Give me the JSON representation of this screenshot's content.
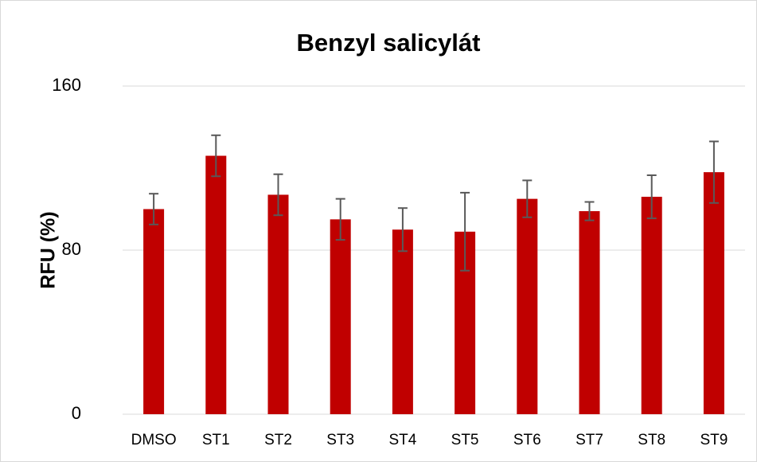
{
  "chart_data": {
    "type": "bar",
    "title": "Benzyl salicylát",
    "y_label": "RFU (%)",
    "categories": [
      "DMSO",
      "ST1",
      "ST2",
      "ST3",
      "ST4",
      "ST5",
      "ST6",
      "ST7",
      "ST8",
      "ST9"
    ],
    "values": [
      100,
      126,
      107,
      95,
      90,
      89,
      105,
      99,
      106,
      118
    ],
    "errors": [
      7.5,
      10,
      10,
      10,
      10.5,
      19,
      9,
      4.5,
      10.5,
      15
    ],
    "color": "#c00000",
    "error_color": "#595959",
    "ylim": [
      0,
      160
    ],
    "yticks": [
      0,
      80,
      160
    ],
    "grid": true
  }
}
